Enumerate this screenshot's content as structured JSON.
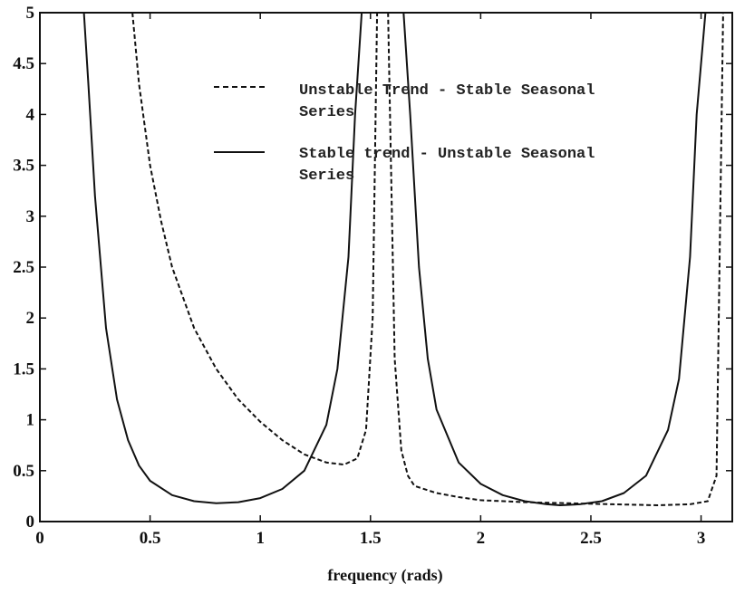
{
  "chart_data": {
    "type": "line",
    "title": "",
    "xlabel": "frequency (rads)",
    "ylabel": "",
    "xlim": [
      0,
      3.1416
    ],
    "ylim": [
      0,
      5
    ],
    "xticks": [
      0,
      0.5,
      1,
      1.5,
      2,
      2.5,
      3
    ],
    "xtick_labels": [
      "0",
      "0.5",
      "1",
      "1.5",
      "2",
      "2.5",
      "3"
    ],
    "yticks": [
      0,
      0.5,
      1,
      1.5,
      2,
      2.5,
      3,
      3.5,
      4,
      4.5,
      5
    ],
    "ytick_labels": [
      "0",
      "0.5",
      "1",
      "1.5",
      "2",
      "2.5",
      "3",
      "3.5",
      "4",
      "4.5",
      "5"
    ],
    "grid": false,
    "legend_position": "top-center",
    "series": [
      {
        "name": "Unstable Trend - Stable Seasonal Series",
        "style": "dashed",
        "color": "#111111",
        "x": [
          0.42,
          0.45,
          0.5,
          0.55,
          0.6,
          0.7,
          0.8,
          0.9,
          1.0,
          1.1,
          1.2,
          1.3,
          1.38,
          1.44,
          1.48,
          1.51,
          1.53,
          1.56,
          1.58,
          1.61,
          1.64,
          1.67,
          1.7,
          1.8,
          1.9,
          2.0,
          2.2,
          2.4,
          2.6,
          2.8,
          2.95,
          3.03,
          3.07,
          3.1
        ],
        "y": [
          5.0,
          4.3,
          3.5,
          2.95,
          2.5,
          1.9,
          1.5,
          1.2,
          0.98,
          0.8,
          0.66,
          0.58,
          0.56,
          0.62,
          0.9,
          2.0,
          5.0,
          5.0,
          5.0,
          1.6,
          0.7,
          0.45,
          0.35,
          0.28,
          0.24,
          0.21,
          0.19,
          0.18,
          0.17,
          0.16,
          0.17,
          0.2,
          0.45,
          5.0
        ]
      },
      {
        "name": "Stable trend - Unstable Seasonal Series",
        "style": "solid",
        "color": "#111111",
        "x": [
          0.2,
          0.22,
          0.25,
          0.3,
          0.35,
          0.4,
          0.45,
          0.5,
          0.6,
          0.7,
          0.8,
          0.9,
          1.0,
          1.1,
          1.2,
          1.3,
          1.35,
          1.4,
          1.43,
          1.46,
          1.5,
          1.65,
          1.68,
          1.72,
          1.76,
          1.8,
          1.9,
          2.0,
          2.1,
          2.2,
          2.3,
          2.36,
          2.45,
          2.55,
          2.65,
          2.75,
          2.85,
          2.9,
          2.95,
          2.98,
          3.02,
          3.05
        ],
        "y": [
          5.0,
          4.3,
          3.2,
          1.9,
          1.2,
          0.8,
          0.55,
          0.4,
          0.26,
          0.2,
          0.18,
          0.19,
          0.23,
          0.32,
          0.5,
          0.95,
          1.5,
          2.6,
          4.0,
          5.0,
          5.0,
          5.0,
          4.0,
          2.5,
          1.6,
          1.1,
          0.58,
          0.37,
          0.26,
          0.2,
          0.17,
          0.16,
          0.17,
          0.2,
          0.28,
          0.45,
          0.9,
          1.4,
          2.6,
          4.0,
          5.0,
          5.0
        ]
      }
    ]
  }
}
